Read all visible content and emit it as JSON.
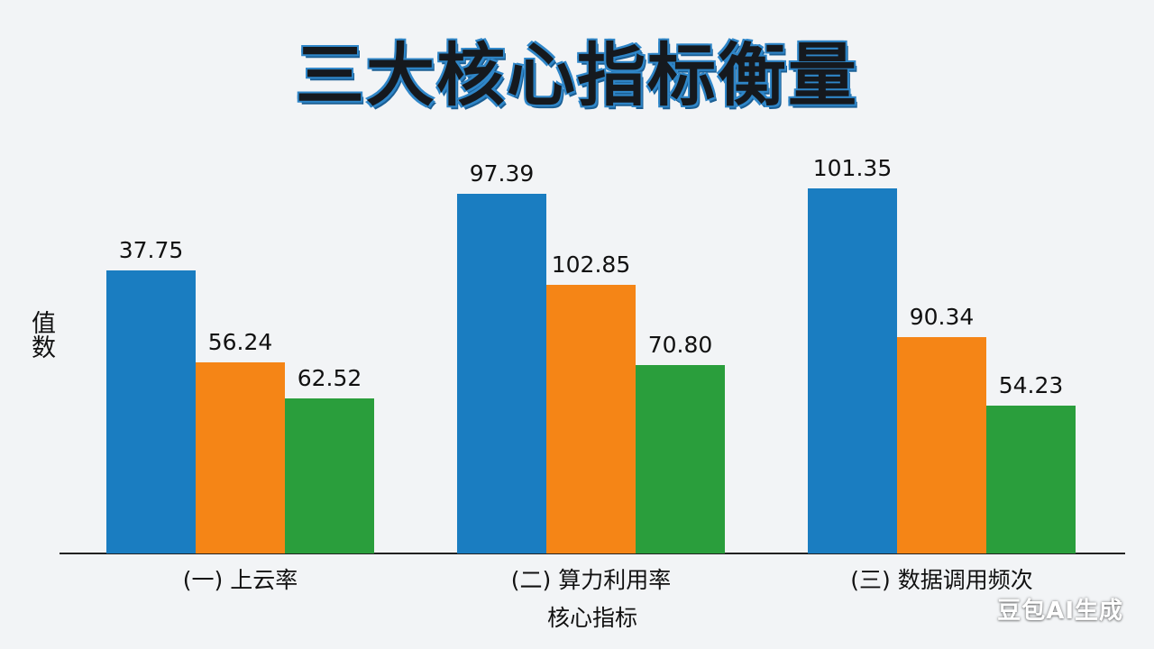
{
  "chart_data": {
    "type": "bar",
    "title": "三大核心指标衡量",
    "xlabel": "核心指标",
    "ylabel": "值数",
    "categories": [
      "(一) 上云率",
      "(二) 算力利用率",
      "(三) 数据调用频次"
    ],
    "series": [
      {
        "color": "#1a7dc1",
        "values": [
          37.75,
          97.39,
          101.35
        ],
        "labels": [
          "37.75",
          "97.39",
          "101.35"
        ]
      },
      {
        "color": "#f58516",
        "values": [
          56.24,
          102.85,
          90.34
        ],
        "labels": [
          "56.24",
          "102.85",
          "90.34"
        ]
      },
      {
        "color": "#2a9e3c",
        "values": [
          62.52,
          70.8,
          54.23
        ],
        "labels": [
          "62.52",
          "70.80",
          "54.23"
        ]
      }
    ]
  },
  "watermark": "豆包AI生成",
  "colors": {
    "title_outline": "#2f86c8",
    "background": "#f2f4f6"
  }
}
